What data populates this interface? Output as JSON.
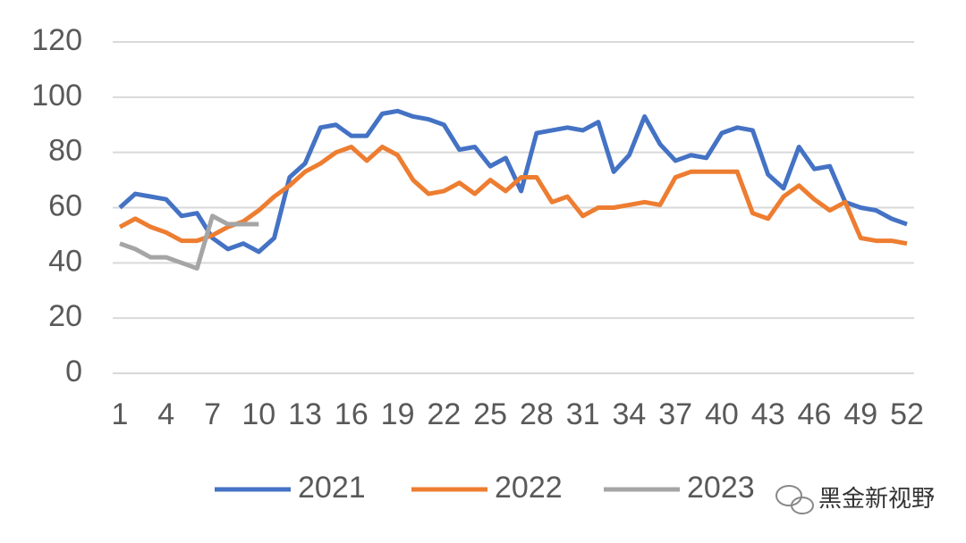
{
  "chart_data": {
    "type": "line",
    "x": [
      1,
      2,
      3,
      4,
      5,
      6,
      7,
      8,
      9,
      10,
      11,
      12,
      13,
      14,
      15,
      16,
      17,
      18,
      19,
      20,
      21,
      22,
      23,
      24,
      25,
      26,
      27,
      28,
      29,
      30,
      31,
      32,
      33,
      34,
      35,
      36,
      37,
      38,
      39,
      40,
      41,
      42,
      43,
      44,
      45,
      46,
      47,
      48,
      49,
      50,
      51,
      52
    ],
    "xlim": [
      1,
      52
    ],
    "xticks": [
      1,
      4,
      7,
      10,
      13,
      16,
      19,
      22,
      25,
      28,
      31,
      34,
      37,
      40,
      43,
      46,
      49,
      52
    ],
    "ylim": [
      0,
      120
    ],
    "yticks": [
      0,
      20,
      40,
      60,
      80,
      100,
      120
    ],
    "grid": true,
    "legend": "bottom",
    "series": [
      {
        "name": "2021",
        "color": "#4472c4",
        "values": [
          60,
          65,
          64,
          63,
          57,
          58,
          49,
          45,
          47,
          44,
          49,
          71,
          76,
          89,
          90,
          86,
          86,
          94,
          95,
          93,
          92,
          90,
          81,
          82,
          75,
          78,
          66,
          87,
          88,
          89,
          88,
          91,
          73,
          79,
          93,
          83,
          77,
          79,
          78,
          87,
          89,
          88,
          72,
          67,
          82,
          74,
          75,
          62,
          60,
          59,
          56,
          54
        ]
      },
      {
        "name": "2022",
        "color": "#ed7d31",
        "values": [
          53,
          56,
          53,
          51,
          48,
          48,
          50,
          53,
          55,
          59,
          64,
          68,
          73,
          76,
          80,
          82,
          77,
          82,
          79,
          70,
          65,
          66,
          69,
          65,
          70,
          66,
          71,
          71,
          62,
          64,
          57,
          60,
          60,
          61,
          62,
          61,
          71,
          73,
          73,
          73,
          73,
          58,
          56,
          64,
          68,
          63,
          59,
          62,
          49,
          48,
          48,
          47
        ]
      },
      {
        "name": "2023",
        "color": "#a5a5a5",
        "values": [
          47,
          45,
          42,
          42,
          40,
          38,
          57,
          54,
          54,
          54,
          null,
          null,
          null,
          null,
          null,
          null,
          null,
          null,
          null,
          null,
          null,
          null,
          null,
          null,
          null,
          null,
          null,
          null,
          null,
          null,
          null,
          null,
          null,
          null,
          null,
          null,
          null,
          null,
          null,
          null,
          null,
          null,
          null,
          null,
          null,
          null,
          null,
          null,
          null,
          null,
          null,
          null
        ]
      }
    ]
  },
  "watermark": "黑金新视野"
}
